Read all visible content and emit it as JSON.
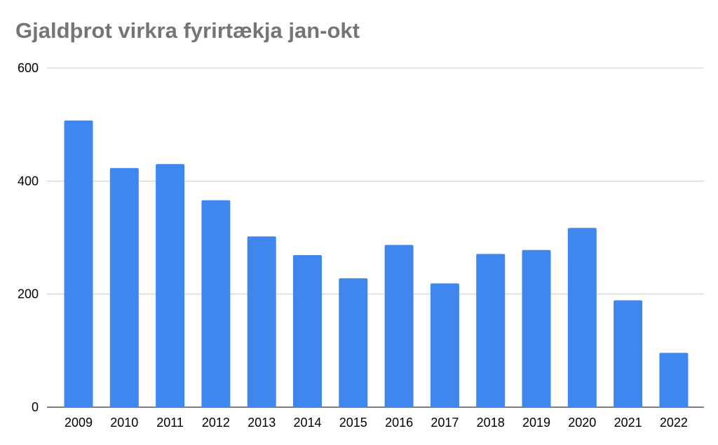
{
  "chart_data": {
    "type": "bar",
    "title": "Gjaldþrot virkra fyrirtækja jan-okt",
    "categories": [
      "2009",
      "2010",
      "2011",
      "2012",
      "2013",
      "2014",
      "2015",
      "2016",
      "2017",
      "2018",
      "2019",
      "2020",
      "2021",
      "2022"
    ],
    "values": [
      507,
      423,
      430,
      366,
      302,
      269,
      228,
      287,
      219,
      271,
      278,
      317,
      189,
      96
    ],
    "ylim": [
      0,
      600
    ],
    "yticks": [
      0,
      200,
      400,
      600
    ],
    "grid": true,
    "bar_color": "#3f86ef",
    "grid_color": "#cccccc"
  }
}
